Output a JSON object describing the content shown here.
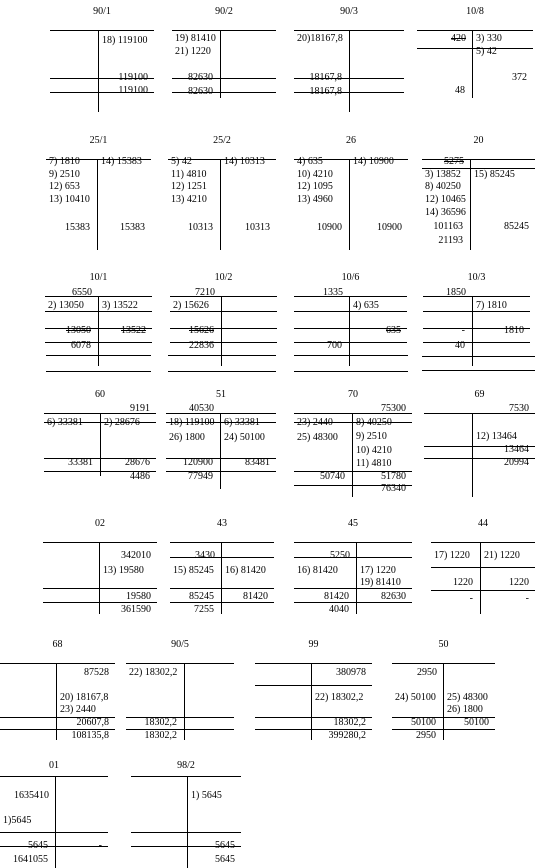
{
  "accounts": [
    {
      "title": "90/1",
      "debit": [],
      "credit": [
        "18) 119100"
      ],
      "turnover_debit": "",
      "turnover_credit": "119100",
      "balance_debit": "",
      "balance_credit": "119100"
    },
    {
      "title": "90/2",
      "debit": [
        "19) 81410",
        "21) 1220"
      ],
      "credit": [],
      "turnover_debit": "82630",
      "turnover_credit": "",
      "balance_debit": "82630",
      "balance_credit": ""
    },
    {
      "title": "90/3",
      "debit": [
        "20)18167,8"
      ],
      "credit": [],
      "turnover_debit": "18167,8",
      "turnover_credit": "",
      "balance_debit": "18167,8",
      "balance_credit": ""
    },
    {
      "title": "10/8",
      "opening_debit": "420",
      "credit": [
        "3) 330",
        "5) 42"
      ],
      "turnover_credit": "372",
      "balance_debit": "48"
    },
    {
      "title": "25/1",
      "debit": [
        "7) 1810",
        "9) 2510",
        "12) 653",
        "13) 10410"
      ],
      "credit": [
        "14) 15383"
      ],
      "turnover_debit": "15383",
      "turnover_credit": "15383"
    },
    {
      "title": "25/2",
      "debit": [
        "5) 42",
        "11) 4810",
        "12) 1251",
        "13) 4210"
      ],
      "credit": [
        "14) 10313"
      ],
      "turnover_debit": "10313",
      "turnover_credit": "10313"
    },
    {
      "title": "26",
      "debit": [
        "4) 635",
        "10) 4210",
        "12) 1095",
        "13) 4960"
      ],
      "credit": [
        "14) 10900"
      ],
      "turnover_debit": "10900",
      "turnover_credit": "10900"
    },
    {
      "title": "20",
      "opening_debit": "5275",
      "debit": [
        "3) 13852",
        "8) 40250",
        "12) 10465",
        "14) 36596"
      ],
      "credit": [
        "15) 85245"
      ],
      "turnover_debit": "101163",
      "turnover_credit": "85245",
      "balance_debit": "21193"
    },
    {
      "title": "10/1",
      "opening_debit": "6550",
      "debit": [
        "2) 13050"
      ],
      "credit": [
        "3) 13522"
      ],
      "turnover_debit": "13050",
      "turnover_credit": "13522",
      "balance_debit": "6078"
    },
    {
      "title": "10/2",
      "opening_debit": "7210",
      "debit": [
        "2) 15626"
      ],
      "turnover_debit": "15626",
      "balance_debit": "22836"
    },
    {
      "title": "10/6",
      "opening_debit": "1335",
      "credit": [
        "4) 635"
      ],
      "turnover_credit": "635",
      "balance_debit": "700"
    },
    {
      "title": "10/3",
      "opening_debit": "1850",
      "credit": [
        "7) 1810"
      ],
      "turnover_debit": "-",
      "turnover_credit": "1810",
      "balance_debit": "40"
    },
    {
      "title": "60",
      "opening_credit": "9191",
      "debit": [
        "6) 33381"
      ],
      "credit": [
        "2) 28676"
      ],
      "turnover_debit": "33381",
      "turnover_credit": "28676",
      "balance_credit": "4486"
    },
    {
      "title": "51",
      "opening_debit": "40530",
      "debit": [
        "18) 119100",
        "26) 1800"
      ],
      "credit": [
        "6) 33381",
        "24) 50100"
      ],
      "turnover_debit": "120900",
      "turnover_credit": "83481",
      "balance_debit": "77949"
    },
    {
      "title": "70",
      "opening_credit": "75300",
      "debit": [
        "23) 2440",
        "25) 48300"
      ],
      "credit": [
        "8) 40250",
        "9) 2510",
        "10) 4210",
        "11) 4810"
      ],
      "turnover_debit": "50740",
      "turnover_credit": "51780",
      "balance_credit": "76340"
    },
    {
      "title": "69",
      "opening_credit": "7530",
      "credit": [
        "12) 13464"
      ],
      "turnover_credit": "13464",
      "balance_credit": "20994"
    },
    {
      "title": "02",
      "opening_credit": "342010",
      "credit": [
        "13) 19580"
      ],
      "turnover_credit": "19580",
      "balance_credit": "361590"
    },
    {
      "title": "43",
      "opening_debit": "3430",
      "debit": [
        "15) 85245"
      ],
      "credit": [
        "16) 81420"
      ],
      "turnover_debit": "85245",
      "turnover_credit": "81420",
      "balance_debit": "7255"
    },
    {
      "title": "45",
      "opening_debit": "5250",
      "debit": [
        "16) 81420"
      ],
      "credit": [
        "17) 1220",
        "19) 81410"
      ],
      "turnover_debit": "81420",
      "turnover_credit": "82630",
      "balance_debit": "4040"
    },
    {
      "title": "44",
      "debit": [
        "17) 1220"
      ],
      "credit": [
        "21) 1220"
      ],
      "turnover_debit": "1220",
      "turnover_credit": "1220",
      "balance_debit": "-",
      "balance_credit": "-"
    },
    {
      "title": "68",
      "opening_credit": "87528",
      "credit": [
        "20) 18167,8",
        "23) 2440"
      ],
      "turnover_credit": "20607,8",
      "balance_credit": "108135,8"
    },
    {
      "title": "90/5",
      "debit": [
        "22) 18302,2"
      ],
      "turnover_debit": "18302,2",
      "balance_debit": "18302,2"
    },
    {
      "title": "99",
      "opening_credit": "380978",
      "credit": [
        "22) 18302,2"
      ],
      "turnover_credit": "18302,2",
      "balance_credit": "399280,2"
    },
    {
      "title": "50",
      "opening_debit": "2950",
      "debit": [
        "24) 50100"
      ],
      "credit": [
        "25) 48300",
        "26) 1800"
      ],
      "turnover_debit": "50100",
      "turnover_credit": "50100",
      "balance_debit": "2950"
    },
    {
      "title": "01",
      "opening_debit": "1635410",
      "debit": [
        "1)5645"
      ],
      "turnover_debit": "5645",
      "turnover_credit": "-",
      "balance_debit": "1641055"
    },
    {
      "title": "98/2",
      "credit": [
        "1) 5645"
      ],
      "turnover_credit": "5645",
      "balance_credit": "5645"
    }
  ]
}
